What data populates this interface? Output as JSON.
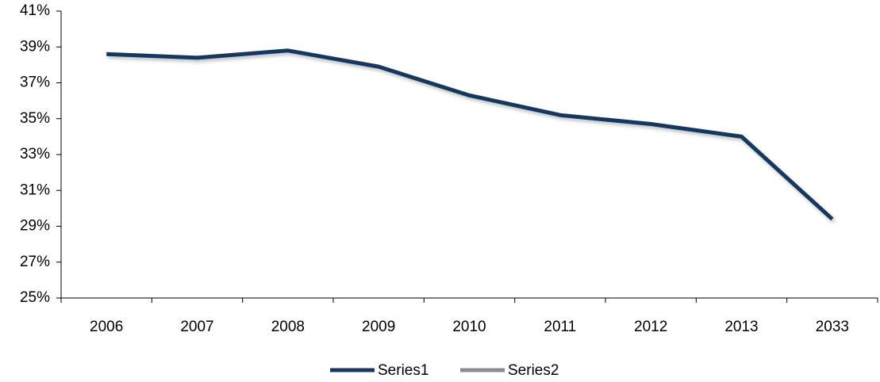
{
  "chart_data": {
    "type": "line",
    "categories": [
      "2006",
      "2007",
      "2008",
      "2009",
      "2010",
      "2011",
      "2012",
      "2013",
      "2033"
    ],
    "series": [
      {
        "name": "Series1",
        "color": "#17375e",
        "values": [
          38.6,
          38.4,
          38.8,
          37.9,
          36.3,
          35.2,
          34.7,
          34.0,
          29.4
        ]
      },
      {
        "name": "Series2",
        "color": "#8c8c8c",
        "values": [
          null,
          null,
          null,
          null,
          null,
          null,
          null,
          null,
          null
        ]
      }
    ],
    "ylim": [
      25,
      41
    ],
    "yticks": [
      {
        "value": 25,
        "label": "25%"
      },
      {
        "value": 27,
        "label": "27%"
      },
      {
        "value": 29,
        "label": "29%"
      },
      {
        "value": 31,
        "label": "31%"
      },
      {
        "value": 33,
        "label": "33%"
      },
      {
        "value": 35,
        "label": "35%"
      },
      {
        "value": 37,
        "label": "37%"
      },
      {
        "value": 39,
        "label": "39%"
      },
      {
        "value": 41,
        "label": "41%"
      }
    ],
    "legend": "bottom",
    "grid": false
  }
}
